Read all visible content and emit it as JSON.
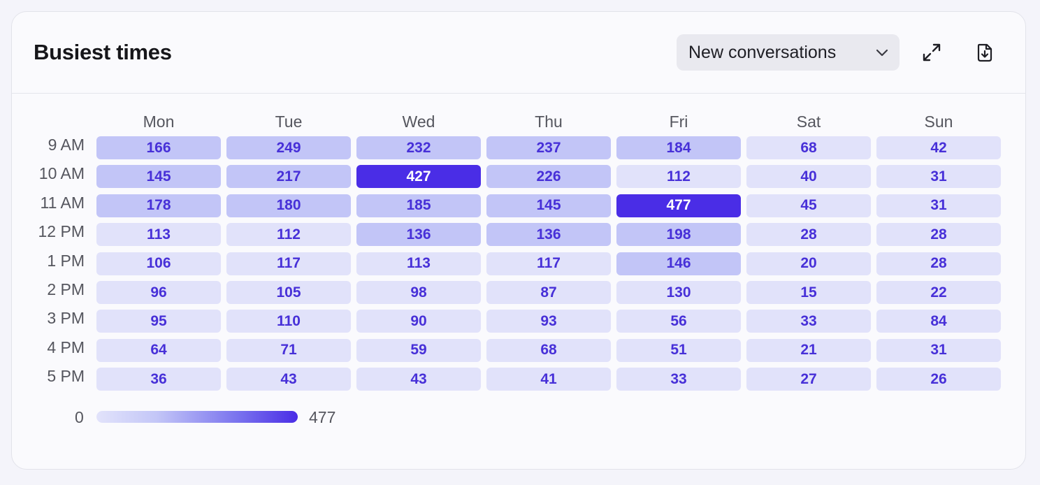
{
  "header": {
    "title": "Busiest times",
    "select_value": "New conversations"
  },
  "icons": {
    "chevron": "chevron-down-icon",
    "expand": "expand-icon",
    "download": "download-file-icon"
  },
  "colors": {
    "accent": "#4a2de6",
    "cell_text": "#4730d8",
    "cell_low": "#e1e2fa",
    "cell_mid": "#c2c5f7",
    "cell_high": "#4a2de6"
  },
  "heatmap": {
    "days": [
      "Mon",
      "Tue",
      "Wed",
      "Thu",
      "Fri",
      "Sat",
      "Sun"
    ],
    "hours": [
      "9 AM",
      "10 AM",
      "11 AM",
      "12 PM",
      "1 PM",
      "2 PM",
      "3 PM",
      "4 PM",
      "5 PM"
    ],
    "values": [
      [
        166,
        249,
        232,
        237,
        184,
        68,
        42
      ],
      [
        145,
        217,
        427,
        226,
        112,
        40,
        31
      ],
      [
        178,
        180,
        185,
        145,
        477,
        45,
        31
      ],
      [
        113,
        112,
        136,
        136,
        198,
        28,
        28
      ],
      [
        106,
        117,
        113,
        117,
        146,
        20,
        28
      ],
      [
        96,
        105,
        98,
        87,
        130,
        15,
        22
      ],
      [
        95,
        110,
        90,
        93,
        56,
        33,
        84
      ],
      [
        64,
        71,
        59,
        68,
        51,
        21,
        31
      ],
      [
        36,
        43,
        43,
        41,
        33,
        27,
        26
      ]
    ],
    "levels": [
      [
        1,
        1,
        1,
        1,
        1,
        0,
        0
      ],
      [
        1,
        1,
        2,
        1,
        0,
        0,
        0
      ],
      [
        1,
        1,
        1,
        1,
        2,
        0,
        0
      ],
      [
        0,
        0,
        1,
        1,
        1,
        0,
        0
      ],
      [
        0,
        0,
        0,
        0,
        1,
        0,
        0
      ],
      [
        0,
        0,
        0,
        0,
        0,
        0,
        0
      ],
      [
        0,
        0,
        0,
        0,
        0,
        0,
        0
      ],
      [
        0,
        0,
        0,
        0,
        0,
        0,
        0
      ],
      [
        0,
        0,
        0,
        0,
        0,
        0,
        0
      ]
    ]
  },
  "legend": {
    "min": "0",
    "max": "477"
  }
}
